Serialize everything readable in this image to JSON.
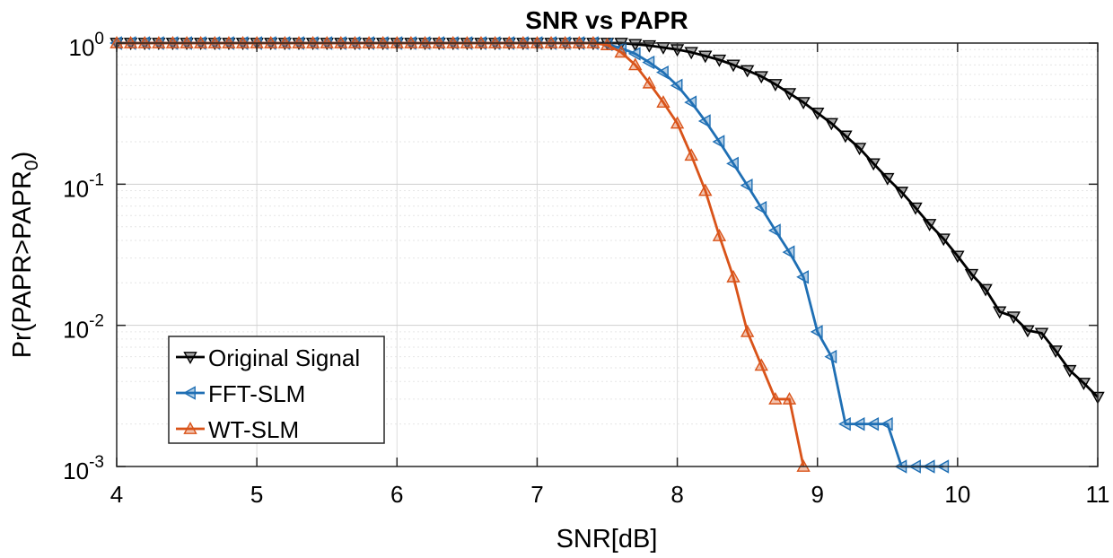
{
  "chart_data": {
    "type": "line",
    "title": "SNR vs PAPR",
    "xlabel": "SNR[dB]",
    "ylabel": "Pr(PAPR>PAPR",
    "ylabel_subscript": "0",
    "ylabel_suffix": ")",
    "xlim": [
      4,
      11
    ],
    "ylim": [
      0.001,
      1
    ],
    "yscale": "log",
    "grid": true,
    "minor_grid": true,
    "legend_position": "bottom-left",
    "x_ticks": [
      4,
      5,
      6,
      7,
      8,
      9,
      10,
      11
    ],
    "x_tick_labels": [
      "4",
      "5",
      "6",
      "7",
      "8",
      "9",
      "10",
      "11"
    ],
    "y_ticks": [
      0.001,
      0.01,
      0.1,
      1
    ],
    "y_tick_labels": [
      {
        "base": "10",
        "exp": "-3"
      },
      {
        "base": "10",
        "exp": "-2"
      },
      {
        "base": "10",
        "exp": "-1"
      },
      {
        "base": "10",
        "exp": "0"
      }
    ],
    "series": [
      {
        "name": "Original Signal",
        "color": "#000000",
        "marker": "triangle-down",
        "x": [
          4.0,
          4.1,
          4.2,
          4.3,
          4.4,
          4.5,
          4.6,
          4.7,
          4.8,
          4.9,
          5.0,
          5.1,
          5.2,
          5.3,
          5.4,
          5.5,
          5.6,
          5.7,
          5.8,
          5.9,
          6.0,
          6.1,
          6.2,
          6.3,
          6.4,
          6.5,
          6.6,
          6.7,
          6.8,
          6.9,
          7.0,
          7.1,
          7.2,
          7.3,
          7.4,
          7.5,
          7.6,
          7.7,
          7.8,
          7.9,
          8.0,
          8.1,
          8.2,
          8.3,
          8.4,
          8.5,
          8.6,
          8.7,
          8.8,
          8.9,
          9.0,
          9.1,
          9.2,
          9.3,
          9.4,
          9.5,
          9.6,
          9.7,
          9.8,
          9.9,
          10.0,
          10.1,
          10.2,
          10.3,
          10.4,
          10.5,
          10.6,
          10.7,
          10.8,
          10.9,
          11.0
        ],
        "y": [
          1,
          1,
          1,
          1,
          1,
          1,
          1,
          1,
          1,
          1,
          1,
          1,
          1,
          1,
          1,
          1,
          1,
          1,
          1,
          1,
          1,
          1,
          1,
          1,
          1,
          1,
          1,
          1,
          1,
          1,
          1,
          1,
          1,
          1,
          1,
          1,
          1,
          0.98,
          0.96,
          0.93,
          0.9,
          0.86,
          0.81,
          0.76,
          0.7,
          0.64,
          0.58,
          0.51,
          0.44,
          0.38,
          0.32,
          0.27,
          0.22,
          0.18,
          0.14,
          0.11,
          0.088,
          0.068,
          0.052,
          0.041,
          0.031,
          0.023,
          0.018,
          0.0125,
          0.0115,
          0.0092,
          0.0088,
          0.0066,
          0.0048,
          0.0039,
          0.0031
        ]
      },
      {
        "name": "FFT-SLM",
        "color": "#1f6fb4",
        "marker": "triangle-left",
        "x": [
          4.0,
          4.1,
          4.2,
          4.3,
          4.4,
          4.5,
          4.6,
          4.7,
          4.8,
          4.9,
          5.0,
          5.1,
          5.2,
          5.3,
          5.4,
          5.5,
          5.6,
          5.7,
          5.8,
          5.9,
          6.0,
          6.1,
          6.2,
          6.3,
          6.4,
          6.5,
          6.6,
          6.7,
          6.8,
          6.9,
          7.0,
          7.1,
          7.2,
          7.3,
          7.4,
          7.5,
          7.6,
          7.7,
          7.8,
          7.9,
          8.0,
          8.1,
          8.2,
          8.3,
          8.4,
          8.5,
          8.6,
          8.7,
          8.8,
          8.9,
          9.0,
          9.1,
          9.2,
          9.3,
          9.4,
          9.5,
          9.6,
          9.7,
          9.8,
          9.9
        ],
        "y": [
          1,
          1,
          1,
          1,
          1,
          1,
          1,
          1,
          1,
          1,
          1,
          1,
          1,
          1,
          1,
          1,
          1,
          1,
          1,
          1,
          1,
          1,
          1,
          1,
          1,
          1,
          1,
          1,
          1,
          1,
          1,
          1,
          1,
          1,
          1,
          0.98,
          0.92,
          0.84,
          0.73,
          0.62,
          0.5,
          0.38,
          0.28,
          0.2,
          0.14,
          0.098,
          0.068,
          0.047,
          0.033,
          0.022,
          0.009,
          0.006,
          0.002,
          0.002,
          0.002,
          0.002,
          0.001,
          0.001,
          0.001,
          0.001
        ]
      },
      {
        "name": "WT-SLM",
        "color": "#d95319",
        "marker": "triangle-up",
        "x": [
          4.0,
          4.1,
          4.2,
          4.3,
          4.4,
          4.5,
          4.6,
          4.7,
          4.8,
          4.9,
          5.0,
          5.1,
          5.2,
          5.3,
          5.4,
          5.5,
          5.6,
          5.7,
          5.8,
          5.9,
          6.0,
          6.1,
          6.2,
          6.3,
          6.4,
          6.5,
          6.6,
          6.7,
          6.8,
          6.9,
          7.0,
          7.1,
          7.2,
          7.3,
          7.4,
          7.5,
          7.6,
          7.7,
          7.8,
          7.9,
          8.0,
          8.1,
          8.2,
          8.3,
          8.4,
          8.5,
          8.6,
          8.7,
          8.8,
          8.9
        ],
        "y": [
          1,
          1,
          1,
          1,
          1,
          1,
          1,
          1,
          1,
          1,
          1,
          1,
          1,
          1,
          1,
          1,
          1,
          1,
          1,
          1,
          1,
          1,
          1,
          1,
          1,
          1,
          1,
          1,
          1,
          1,
          1,
          1,
          1,
          1,
          1,
          0.97,
          0.86,
          0.7,
          0.52,
          0.38,
          0.27,
          0.16,
          0.09,
          0.043,
          0.022,
          0.009,
          0.0052,
          0.003,
          0.003,
          0.001
        ]
      }
    ]
  }
}
